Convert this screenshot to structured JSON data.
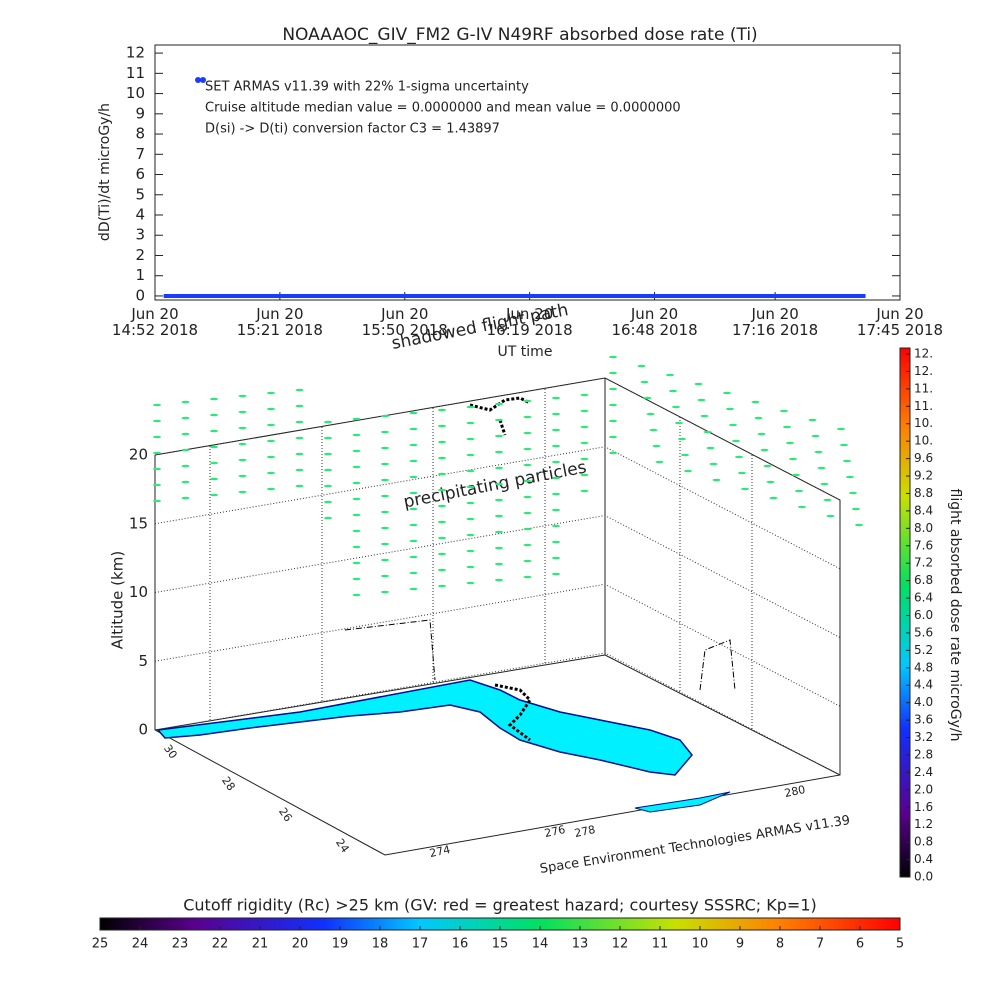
{
  "chart_data": [
    {
      "type": "line",
      "title": "NOAAAOC_GIV_FM2 G-IV    N49RF  absorbed dose rate (Ti)",
      "y_label": "dD(Ti)/dt microGy/h",
      "x_label": "UT time",
      "annotations": [
        "SET ARMAS v11.39 with 22% 1-sigma uncertainty",
        "Cruise altitude median value = 0.0000000 and mean value = 0.0000000",
        "D(si) -> D(ti) conversion factor C3 = 1.43897"
      ],
      "x": [
        "14:54",
        "17:37"
      ],
      "series": [
        {
          "color": "#1a3cff",
          "values": [
            0,
            0
          ]
        }
      ],
      "xlim": [
        "14:52",
        "17:45"
      ],
      "xticks": [
        {
          "value": "14:52",
          "label": "Jun 20\n14:52 2018"
        },
        {
          "value": "15:21",
          "label": "Jun 20\n15:21 2018"
        },
        {
          "value": "15:50",
          "label": "Jun 20\n15:50 2018"
        },
        {
          "value": "16:19",
          "label": "Jun 20\n16:19 2018"
        },
        {
          "value": "16:48",
          "label": "Jun 20\n16:48 2018"
        },
        {
          "value": "17:16",
          "label": "Jun 20\n17:16 2018"
        },
        {
          "value": "17:45",
          "label": "Jun 20\n17:45 2018"
        }
      ],
      "ylim": [
        -0.2,
        12.4
      ],
      "yticks": [
        0,
        1,
        2,
        3,
        4,
        5,
        6,
        7,
        8,
        9,
        10,
        11,
        12
      ]
    },
    {
      "type": "surface3d",
      "annotations": [
        "shadowed flight path",
        "precipitating particles",
        "Space Environment Technologies ARMAS v11.39"
      ],
      "z_label": "Altitude (km)",
      "zlim": [
        0,
        20
      ],
      "zticks": [
        0,
        5,
        10,
        15,
        20
      ],
      "lat_ticks": [
        30,
        28,
        26,
        24
      ],
      "lon_ticks": [
        274,
        276,
        278,
        280
      ],
      "colorbar": {
        "label": "flight absorbed dose rate microGy/h",
        "lim": [
          0,
          12
        ],
        "ticks": [
          {
            "value": 0,
            "label": "0.0"
          },
          0.4,
          0.8,
          1.2,
          1.6,
          {
            "value": 2,
            "label": "2.0"
          },
          2.4,
          2.8,
          3.2,
          3.6,
          {
            "value": 4,
            "label": "4.0"
          },
          4.4,
          4.8,
          5.2,
          5.6,
          {
            "value": 6,
            "label": "6.0"
          },
          6.4,
          6.8,
          7.2,
          7.6,
          {
            "value": 8,
            "label": "8.0"
          },
          8.4,
          8.8,
          9.2,
          9.6,
          {
            "value": 10,
            "label": "10."
          },
          {
            "value": 10.4,
            "label": "10."
          },
          {
            "value": 10.8,
            "label": "11."
          },
          {
            "value": 11.2,
            "label": "11."
          },
          {
            "value": 11.6,
            "label": "12."
          },
          {
            "value": 12,
            "label": "12."
          }
        ]
      },
      "rigidity_bar": {
        "title": "Cutoff rigidity (Rc) >25 km (GV: red = greatest hazard; courtesy SSSRC; Kp=1)",
        "lim": [
          25,
          5
        ],
        "ticks": [
          25,
          24,
          23,
          22,
          21,
          20,
          19,
          18,
          17,
          16,
          15,
          14,
          13,
          12,
          11,
          10,
          9,
          8,
          7,
          6,
          5
        ]
      }
    }
  ]
}
